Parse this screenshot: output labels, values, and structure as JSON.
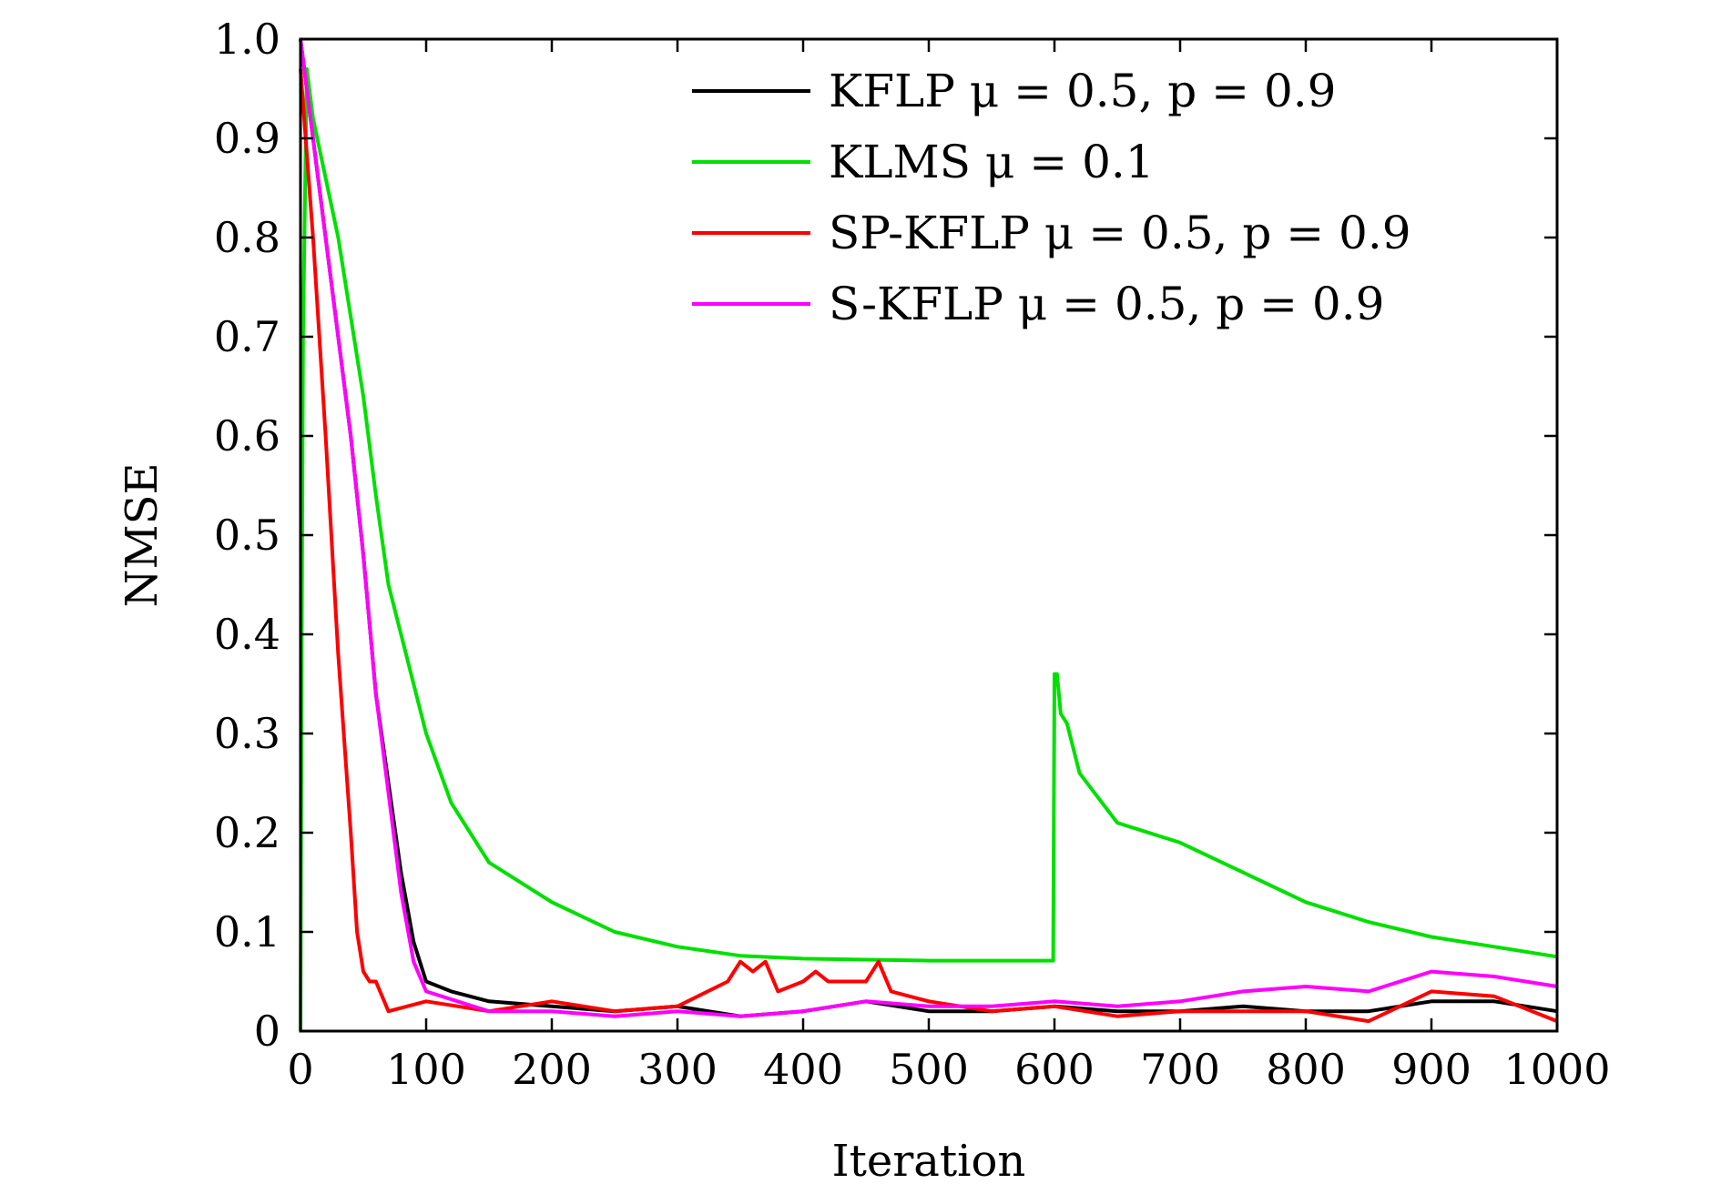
{
  "chart_data": {
    "type": "line",
    "xlabel": "Iteration",
    "ylabel": "NMSE",
    "xlim": [
      0,
      1000
    ],
    "ylim": [
      0,
      1.0
    ],
    "x_ticks": [
      "0",
      "100",
      "200",
      "300",
      "400",
      "500",
      "600",
      "700",
      "800",
      "900",
      "1000"
    ],
    "y_ticks": [
      "0",
      "0.1",
      "0.2",
      "0.3",
      "0.4",
      "0.5",
      "0.6",
      "0.7",
      "0.8",
      "0.9",
      "1.0"
    ],
    "grid": false,
    "legend_position": "top-right",
    "series": [
      {
        "name": "KFLP μ = 0.5, p = 0.9",
        "color": "#000000",
        "x": [
          0,
          10,
          20,
          30,
          40,
          50,
          60,
          70,
          80,
          90,
          100,
          120,
          150,
          200,
          250,
          300,
          350,
          400,
          450,
          500,
          550,
          600,
          650,
          700,
          750,
          800,
          850,
          900,
          950,
          1000
        ],
        "y": [
          1.0,
          0.9,
          0.8,
          0.7,
          0.6,
          0.48,
          0.34,
          0.25,
          0.16,
          0.09,
          0.05,
          0.04,
          0.03,
          0.025,
          0.02,
          0.025,
          0.015,
          0.02,
          0.03,
          0.02,
          0.02,
          0.025,
          0.02,
          0.02,
          0.025,
          0.02,
          0.02,
          0.03,
          0.03,
          0.02
        ]
      },
      {
        "name": "KLMS μ = 0.1",
        "color": "#00e000",
        "x": [
          0,
          1,
          2,
          5,
          10,
          20,
          30,
          40,
          50,
          60,
          70,
          80,
          90,
          100,
          120,
          150,
          200,
          250,
          300,
          350,
          400,
          450,
          500,
          550,
          599,
          600,
          602,
          605,
          610,
          620,
          650,
          700,
          750,
          800,
          850,
          900,
          950,
          1000
        ],
        "y": [
          0,
          0.4,
          0.7,
          0.97,
          0.92,
          0.86,
          0.8,
          0.72,
          0.64,
          0.54,
          0.45,
          0.4,
          0.35,
          0.3,
          0.23,
          0.17,
          0.13,
          0.1,
          0.085,
          0.076,
          0.073,
          0.072,
          0.071,
          0.071,
          0.071,
          0.36,
          0.36,
          0.32,
          0.31,
          0.26,
          0.21,
          0.19,
          0.16,
          0.13,
          0.11,
          0.095,
          0.085,
          0.075
        ]
      },
      {
        "name": "SP-KFLP μ = 0.5, p = 0.9",
        "color": "#ff0000",
        "x": [
          0,
          10,
          20,
          30,
          40,
          45,
          50,
          55,
          60,
          70,
          100,
          150,
          200,
          250,
          300,
          340,
          350,
          360,
          370,
          380,
          400,
          410,
          420,
          450,
          460,
          470,
          500,
          550,
          600,
          650,
          700,
          750,
          800,
          850,
          900,
          950,
          1000
        ],
        "y": [
          0.97,
          0.8,
          0.6,
          0.38,
          0.2,
          0.1,
          0.06,
          0.05,
          0.05,
          0.02,
          0.03,
          0.02,
          0.03,
          0.02,
          0.025,
          0.05,
          0.07,
          0.06,
          0.07,
          0.04,
          0.05,
          0.06,
          0.05,
          0.05,
          0.07,
          0.04,
          0.03,
          0.02,
          0.025,
          0.015,
          0.02,
          0.02,
          0.02,
          0.01,
          0.04,
          0.035,
          0.01
        ]
      },
      {
        "name": "S-KFLP μ = 0.5, p = 0.9",
        "color": "#ff00ff",
        "x": [
          0,
          10,
          20,
          30,
          40,
          50,
          60,
          70,
          80,
          90,
          100,
          150,
          200,
          250,
          300,
          350,
          400,
          450,
          500,
          550,
          600,
          650,
          700,
          750,
          800,
          850,
          900,
          950,
          1000
        ],
        "y": [
          1.0,
          0.9,
          0.8,
          0.7,
          0.6,
          0.48,
          0.34,
          0.24,
          0.14,
          0.07,
          0.04,
          0.02,
          0.02,
          0.015,
          0.02,
          0.015,
          0.02,
          0.03,
          0.025,
          0.025,
          0.03,
          0.025,
          0.03,
          0.04,
          0.045,
          0.04,
          0.06,
          0.055,
          0.045
        ]
      }
    ]
  }
}
